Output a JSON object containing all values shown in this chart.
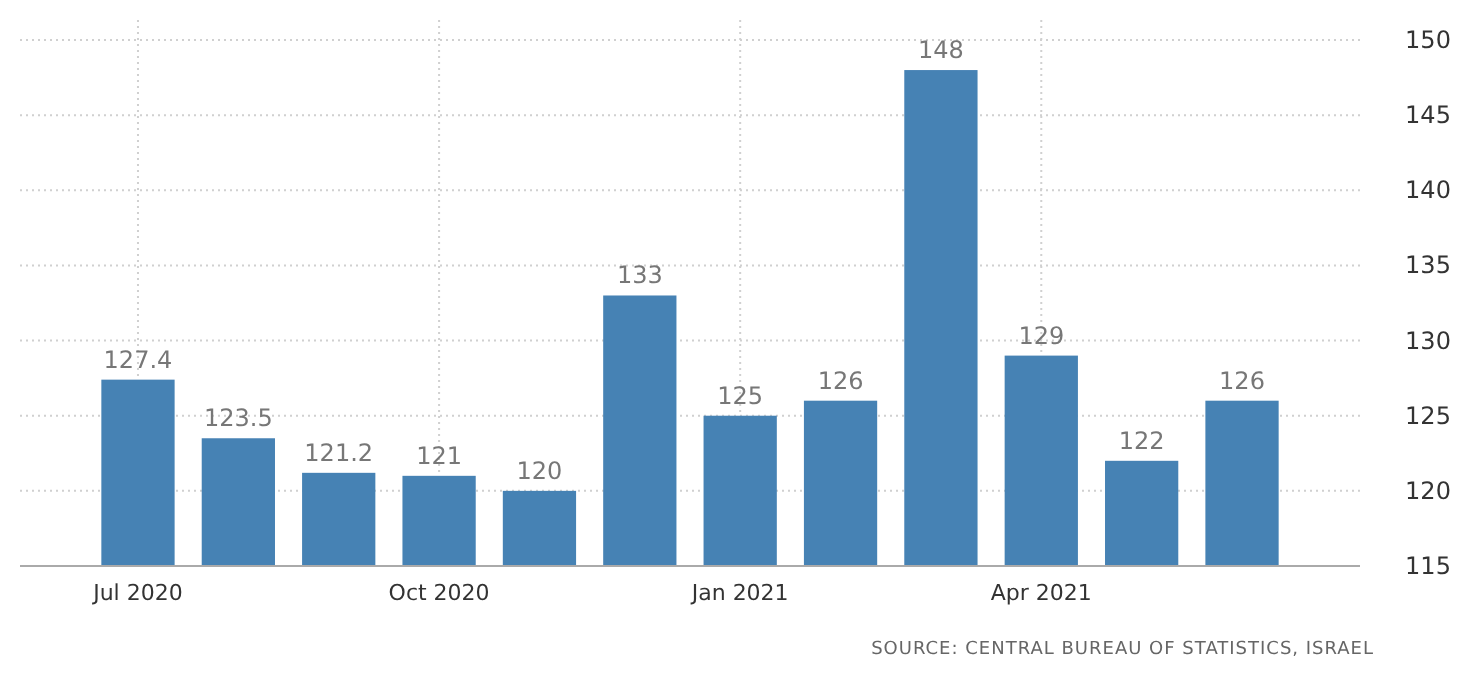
{
  "chart_data": {
    "type": "bar",
    "categories": [
      "Jul 2020",
      null,
      null,
      "Oct 2020",
      null,
      null,
      "Jan 2021",
      null,
      null,
      "Apr 2021",
      null,
      null
    ],
    "values": [
      127.4,
      123.5,
      121.2,
      121,
      120,
      133,
      125,
      126,
      148,
      129,
      122,
      126
    ],
    "color": "#4682b4",
    "ylim": [
      115,
      150
    ],
    "yticks": [
      115,
      120,
      125,
      130,
      135,
      140,
      145,
      150
    ],
    "grid": true,
    "data_labels": true,
    "annotations": [
      "SOURCE: CENTRAL BUREAU OF STATISTICS, ISRAEL"
    ]
  }
}
